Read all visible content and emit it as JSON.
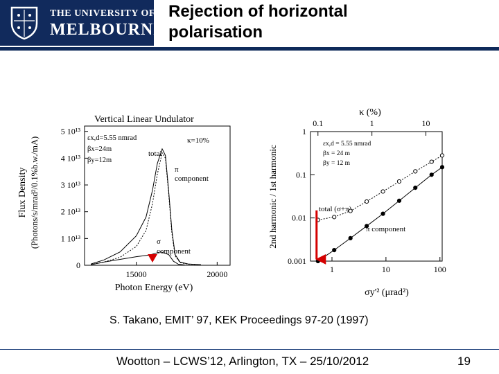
{
  "header": {
    "logo_line1": "THE UNIVERSITY OF",
    "logo_line2": "MELBOURNE",
    "title_line1": "Rejection of horizontal",
    "title_line2": "polarisation"
  },
  "colors": {
    "brand_navy": "#112a5c",
    "arrow_red": "#d40000"
  },
  "chart_data": [
    {
      "type": "line",
      "title": "Vertical Linear Undulator",
      "xlabel": "Photon Energy (eV)",
      "ylabel_line1": "Flux Density",
      "ylabel_line2": "(Photons/s/mrad²/0.1%b.w./mA)",
      "x_ticks": [
        "15000",
        "20000"
      ],
      "y_ticks": [
        "0",
        "1 10¹³",
        "2 10¹³",
        "3 10¹³",
        "4 10¹³",
        "5 10¹³"
      ],
      "xlim": [
        11800,
        20800
      ],
      "ylim": [
        0,
        52000000000000.0
      ],
      "params": [
        "εx,d=5.55 nmrad",
        "βx=24m",
        "βy=12m"
      ],
      "kappa_label": "κ=10%",
      "annotations": [
        "total",
        "π",
        "component",
        "σ",
        "component"
      ],
      "series": [
        {
          "name": "total",
          "style": "solid",
          "x": [
            12200,
            13000,
            14000,
            15000,
            15600,
            16000,
            16300,
            16600,
            16800,
            17000,
            17200,
            17400,
            17700,
            18200,
            19000
          ],
          "y": [
            500000000000.0,
            2000000000000.0,
            5000000000000.0,
            11000000000000.0,
            18000000000000.0,
            28000000000000.0,
            38000000000000.0,
            43500000000000.0,
            41000000000000.0,
            28000000000000.0,
            13000000000000.0,
            4000000000000.0,
            1200000000000.0,
            500000000000.0,
            200000000000.0
          ]
        },
        {
          "name": "π component",
          "style": "dotted",
          "x": [
            12200,
            13000,
            14000,
            15000,
            15600,
            16000,
            16300,
            16600,
            16800,
            17000,
            17200,
            17400,
            17700,
            18200,
            19000
          ],
          "y": [
            300000000000.0,
            1200000000000.0,
            3000000000000.0,
            7000000000000.0,
            13000000000000.0,
            23000000000000.0,
            34000000000000.0,
            42000000000000.0,
            40000000000000.0,
            27000000000000.0,
            12000000000000.0,
            3500000000000.0,
            1000000000000.0,
            400000000000.0,
            200000000000.0
          ]
        },
        {
          "name": "σ component",
          "style": "solid",
          "x": [
            12200,
            13000,
            14000,
            15000,
            15800,
            16500,
            17000,
            17300,
            17600,
            18000
          ],
          "y": [
            200000000000.0,
            1200000000000.0,
            2200000000000.0,
            3200000000000.0,
            3800000000000.0,
            5000000000000.0,
            4000000000000.0,
            1500000000000.0,
            400000000000.0,
            100000000000.0
          ]
        }
      ],
      "arrow_x": 16000
    },
    {
      "type": "line",
      "title": "",
      "xlabel": "σy'² (μrad²)",
      "top_axis_label": "κ (%)",
      "ylabel": "2nd harmonic / 1st harmonic",
      "log_x": true,
      "log_y": true,
      "x_ticks": [
        "1",
        "10",
        "100"
      ],
      "top_ticks": [
        "0.1",
        "1",
        "10"
      ],
      "y_ticks": [
        "0.001",
        "0.01",
        "0.1",
        "1"
      ],
      "xlim": [
        0.4,
        110
      ],
      "ylim": [
        0.001,
        1.0
      ],
      "params": [
        "εx,d = 5.55 nmrad",
        "βx = 24 m",
        "βy = 12 m"
      ],
      "series": [
        {
          "name": "total (σ+π)",
          "style": "dotted",
          "marker": "open-circle",
          "x": [
            0.55,
            1.1,
            2.2,
            4.4,
            8.8,
            17.6,
            35,
            70,
            110
          ],
          "y": [
            0.009,
            0.0105,
            0.0145,
            0.024,
            0.041,
            0.07,
            0.12,
            0.2,
            0.28
          ]
        },
        {
          "name": "π component",
          "style": "solid",
          "marker": "filled-circle",
          "x": [
            0.55,
            1.1,
            2.2,
            4.4,
            8.8,
            17.6,
            35,
            70,
            110
          ],
          "y": [
            0.001,
            0.0018,
            0.0034,
            0.0065,
            0.0125,
            0.025,
            0.05,
            0.1,
            0.15
          ]
        }
      ],
      "arrow_x": 0.55
    }
  ],
  "caption": "S. Takano, EMIT’ 97, KEK Proceedings 97-20 (1997)",
  "footer": {
    "text": "Wootton – LCWS’12, Arlington, TX – 25/10/2012",
    "page": "19"
  }
}
